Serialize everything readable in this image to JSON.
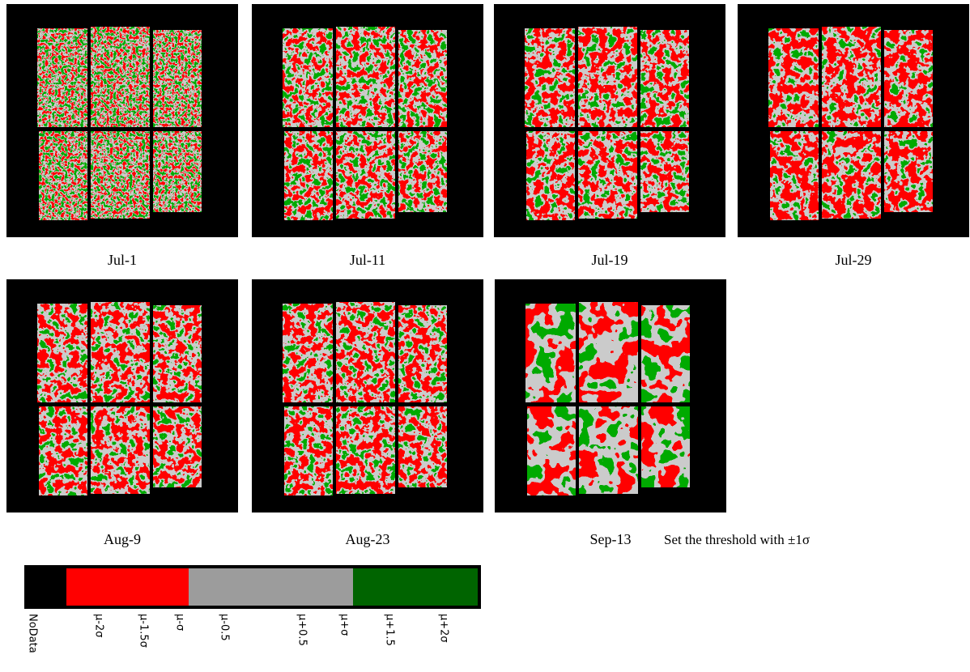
{
  "panels": [
    {
      "date": "Jul-1"
    },
    {
      "date": "Jul-11"
    },
    {
      "date": "Jul-19"
    },
    {
      "date": "Jul-29"
    },
    {
      "date": "Aug-9"
    },
    {
      "date": "Aug-23"
    },
    {
      "date": "Sep-13"
    }
  ],
  "legend": {
    "labels": [
      "NoData",
      "μ-2σ",
      "μ-1.5σ",
      "μ-σ",
      "μ-0.5",
      "μ+0.5",
      "μ+σ",
      "μ+1.5",
      "μ+2σ"
    ]
  },
  "note": "Set the threshold with ±1σ"
}
